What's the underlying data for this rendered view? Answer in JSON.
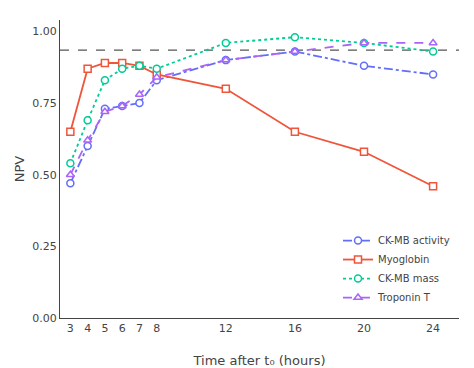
{
  "chart_data": {
    "type": "line",
    "x": [
      3,
      4,
      5,
      6,
      7,
      8,
      12,
      16,
      20,
      24
    ],
    "series": [
      {
        "name": "CK-MB activity",
        "values": [
          0.47,
          0.6,
          0.73,
          0.74,
          0.75,
          0.83,
          0.9,
          0.93,
          0.88,
          0.85
        ],
        "marker": "circle",
        "line_style": "dashdot"
      },
      {
        "name": "Myoglobin",
        "values": [
          0.65,
          0.87,
          0.89,
          0.89,
          0.88,
          0.85,
          0.8,
          0.65,
          0.58,
          0.46
        ],
        "marker": "square",
        "line_style": "solid"
      },
      {
        "name": "CK-MB mass",
        "values": [
          0.54,
          0.69,
          0.83,
          0.87,
          0.88,
          0.87,
          0.96,
          0.98,
          0.96,
          0.93
        ],
        "marker": "circle",
        "line_style": "dotted"
      },
      {
        "name": "Troponin T",
        "values": [
          0.5,
          0.62,
          0.72,
          0.74,
          0.78,
          0.84,
          0.9,
          0.93,
          0.96,
          0.96
        ],
        "marker": "triangle",
        "line_style": "dashed"
      }
    ],
    "hline": 0.935,
    "xlabel": "Time after t₀ (hours)",
    "ylabel": "NPV",
    "xlim": [
      2.4,
      25.5
    ],
    "xticks": [
      3,
      4,
      5,
      6,
      7,
      8,
      12,
      16,
      20,
      24
    ],
    "ylim": [
      0.0,
      1.04
    ],
    "yticks": [
      {
        "value": 0.0,
        "label": "0.00"
      },
      0.25,
      {
        "value": 0.5,
        "label": "0.50"
      },
      0.75,
      {
        "value": 1.0,
        "label": "1.00"
      }
    ],
    "grid": false,
    "legend": "lower right"
  }
}
